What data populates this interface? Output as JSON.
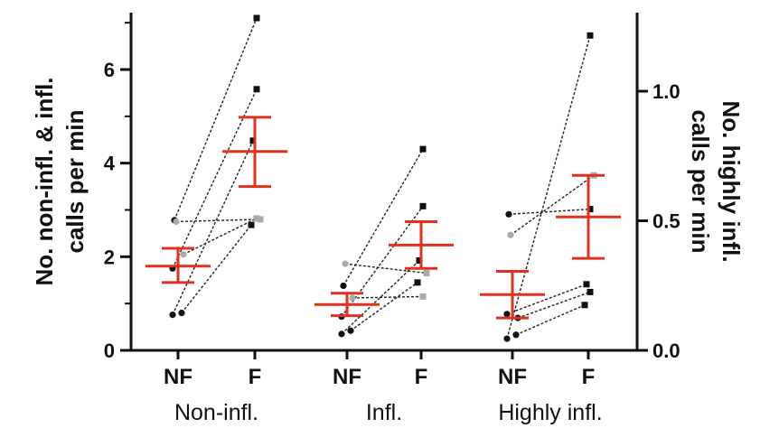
{
  "chart_data": {
    "type": "scatter",
    "title": "",
    "left_axis": {
      "label_lines": [
        "No. non-infl. & infl.",
        "calls per min"
      ],
      "range": [
        0,
        7.2
      ],
      "ticks": [
        "0",
        "2",
        "4",
        "6"
      ]
    },
    "right_axis": {
      "label_lines": [
        "No. highly infl.",
        "calls per min"
      ],
      "range": [
        0,
        1.3
      ],
      "ticks": [
        "0.0",
        "0.5",
        "1.0"
      ]
    },
    "condition_labels": [
      "NF",
      "F",
      "NF",
      "F",
      "NF",
      "F"
    ],
    "groups": [
      {
        "name": "Non-infl.",
        "axis": "left",
        "nf_mean": 1.8,
        "nf_sem": [
          1.45,
          2.18
        ],
        "f_mean": 4.25,
        "f_sem": [
          3.5,
          4.98
        ],
        "subjects": [
          {
            "nf": 2.78,
            "f": 7.1,
            "color": "black"
          },
          {
            "nf": 1.75,
            "f": 5.58,
            "color": "black"
          },
          {
            "nf": 0.76,
            "f": 4.48,
            "color": "black"
          },
          {
            "nf": 0.8,
            "f": 2.68,
            "color": "black"
          },
          {
            "nf": 2.75,
            "f": 2.8,
            "color": "gray"
          },
          {
            "nf": 2.05,
            "f": 2.82,
            "color": "gray"
          }
        ]
      },
      {
        "name": "Infl.",
        "axis": "left",
        "nf_mean": 0.98,
        "nf_sem": [
          0.74,
          1.22
        ],
        "f_mean": 2.25,
        "f_sem": [
          1.75,
          2.75
        ],
        "subjects": [
          {
            "nf": 1.38,
            "f": 4.3,
            "color": "black"
          },
          {
            "nf": 0.72,
            "f": 3.08,
            "color": "black"
          },
          {
            "nf": 0.35,
            "f": 1.92,
            "color": "black"
          },
          {
            "nf": 0.42,
            "f": 1.45,
            "color": "black"
          },
          {
            "nf": 1.85,
            "f": 1.65,
            "color": "gray"
          },
          {
            "nf": 1.12,
            "f": 1.15,
            "color": "gray"
          }
        ]
      },
      {
        "name": "Highly infl.",
        "axis": "right",
        "nf_mean": 0.215,
        "nf_sem": [
          0.125,
          0.305
        ],
        "f_mean": 0.515,
        "f_sem": [
          0.355,
          0.675
        ],
        "subjects": [
          {
            "nf": 0.525,
            "f": 0.545,
            "color": "black"
          },
          {
            "nf": 0.045,
            "f": 1.215,
            "color": "black"
          },
          {
            "nf": 0.14,
            "f": 0.255,
            "color": "black"
          },
          {
            "nf": 0.06,
            "f": 0.175,
            "color": "black"
          },
          {
            "nf": 0.445,
            "f": 0.675,
            "color": "gray"
          },
          {
            "nf": 0.125,
            "f": 0.225,
            "color": "black"
          }
        ]
      }
    ],
    "colors": {
      "mean_sem": "#e0301e",
      "black_points": "#111111",
      "gray_points": "#aaaaaa",
      "axes": "#111111",
      "connectors": "#222222"
    }
  }
}
